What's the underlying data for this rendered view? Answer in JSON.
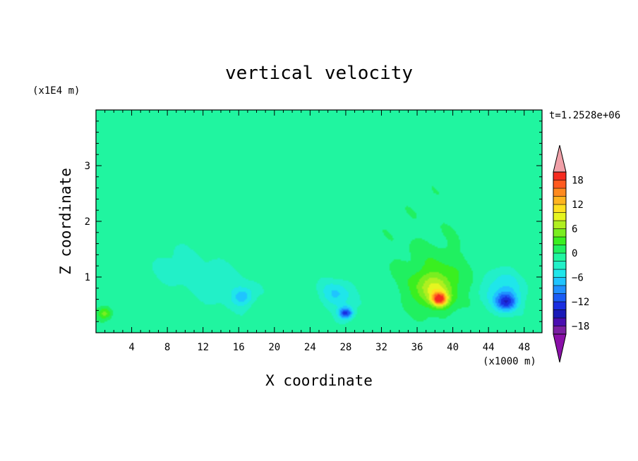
{
  "chart_data": {
    "type": "heatmap",
    "title": "vertical velocity",
    "xlabel": "X coordinate",
    "ylabel": "Z coordinate",
    "x_unit_label": "(x1000 m)",
    "y_unit_label": "(x1E4 m)",
    "time_label": "t=1.2528e+06",
    "xlim": [
      0,
      50
    ],
    "ylim": [
      0,
      4
    ],
    "x_ticks": [
      4,
      8,
      12,
      16,
      20,
      24,
      28,
      32,
      36,
      40,
      44,
      48
    ],
    "y_ticks": [
      1,
      2,
      3
    ],
    "colorbar": {
      "min": -20,
      "max": 20,
      "step": 2,
      "tick_values": [
        18,
        12,
        6,
        0,
        -6,
        -12,
        -18
      ],
      "tick_labels": [
        "18",
        "12",
        "6",
        "0",
        "−6",
        "−12",
        "−18"
      ],
      "colors": [
        "#7a1fa2",
        "#4a0fb0",
        "#1a1ab8",
        "#1a2ee0",
        "#1a5cf5",
        "#2090ff",
        "#1fc4ff",
        "#1fe6ea",
        "#22f0c8",
        "#20f5a0",
        "#20f060",
        "#3aef20",
        "#7aee20",
        "#b0ef20",
        "#e6f51f",
        "#ffe01f",
        "#ffb41f",
        "#ff8a1f",
        "#ff5a1f",
        "#f52a1f"
      ],
      "under_color": "#8a10a8",
      "over_color": "#f0a0a8"
    },
    "features": [
      {
        "x": 1,
        "z": 0.35,
        "w": 0.8,
        "value": 6
      },
      {
        "x": 38.5,
        "z": 0.6,
        "w": 0.8,
        "value": 16
      },
      {
        "x": 38,
        "z": 0.75,
        "w": 2.2,
        "value": 7
      },
      {
        "x": 38,
        "z": 1.0,
        "w": 4,
        "value": 3
      },
      {
        "x": 28,
        "z": 0.35,
        "w": 0.8,
        "value": -12
      },
      {
        "x": 27,
        "z": 0.7,
        "w": 1.8,
        "value": -5
      },
      {
        "x": 46,
        "z": 0.55,
        "w": 1.2,
        "value": -11
      },
      {
        "x": 45.5,
        "z": 0.8,
        "w": 2.2,
        "value": -5
      },
      {
        "x": 16.5,
        "z": 0.65,
        "w": 1.2,
        "value": -6
      },
      {
        "x": 14,
        "z": 0.9,
        "w": 3,
        "value": -2
      },
      {
        "x": 9,
        "z": 1.2,
        "w": 2.5,
        "value": -2
      },
      {
        "x": 36,
        "z": 2.2,
        "w": 10,
        "value": 0.5
      },
      {
        "x": 13,
        "z": 2.9,
        "w": 10,
        "value": 0.4
      }
    ]
  }
}
